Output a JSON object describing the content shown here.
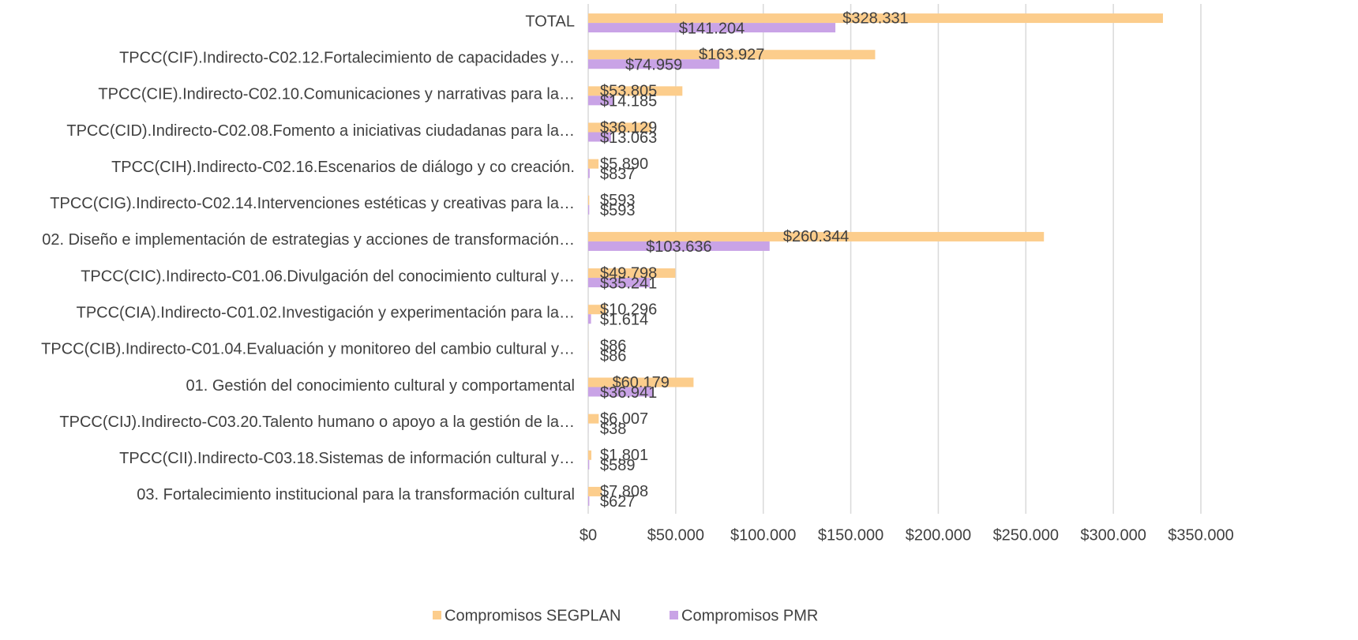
{
  "chart_data": {
    "type": "bar",
    "orientation": "horizontal",
    "categories": [
      "TOTAL",
      "TPCC(CIF).Indirecto-C02.12.Fortalecimiento de capacidades y…",
      "TPCC(CIE).Indirecto-C02.10.Comunicaciones y narrativas para la…",
      "TPCC(CID).Indirecto-C02.08.Fomento a iniciativas ciudadanas para la…",
      "TPCC(CIH).Indirecto-C02.16.Escenarios de diálogo y co creación.",
      "TPCC(CIG).Indirecto-C02.14.Intervenciones estéticas y creativas para la…",
      "02. Diseño e implementación de estrategias y acciones de transformación…",
      "TPCC(CIC).Indirecto-C01.06.Divulgación del conocimiento cultural y…",
      "TPCC(CIA).Indirecto-C01.02.Investigación y experimentación para la…",
      "TPCC(CIB).Indirecto-C01.04.Evaluación y monitoreo del cambio cultural y…",
      "01. Gestión del conocimiento cultural y comportamental",
      "TPCC(CIJ).Indirecto-C03.20.Talento humano o apoyo a la gestión de la…",
      "TPCC(CII).Indirecto-C03.18.Sistemas de información cultural y…",
      "03. Fortalecimiento institucional para la transformación cultural"
    ],
    "series": [
      {
        "name": "Compromisos SEGPLAN",
        "color": "#fccd8c",
        "values": [
          328331,
          163927,
          53805,
          36129,
          5890,
          593,
          260344,
          49798,
          10296,
          86,
          60179,
          6007,
          1801,
          7808
        ],
        "value_labels": [
          "$328.331",
          "$163.927",
          "$53.805",
          "$36.129",
          "$5.890",
          "$593",
          "$260.344",
          "$49.798",
          "$10.296",
          "$86",
          "$60.179",
          "$6.007",
          "$1.801",
          "$7.808"
        ]
      },
      {
        "name": "Compromisos PMR",
        "color": "#c9a3e6",
        "values": [
          141204,
          74959,
          14185,
          13063,
          837,
          593,
          103636,
          35241,
          1614,
          86,
          36941,
          38,
          589,
          627
        ],
        "value_labels": [
          "$141.204",
          "$74.959",
          "$14.185",
          "$13.063",
          "$837",
          "$593",
          "$103.636",
          "$35.241",
          "$1.614",
          "$86",
          "$36.941",
          "$38",
          "$589",
          "$627"
        ]
      }
    ],
    "xlim": [
      0,
      350000
    ],
    "xticks": [
      {
        "value": 0,
        "label": "$0"
      },
      {
        "value": 50000,
        "label": "$50.000"
      },
      {
        "value": 100000,
        "label": "$100.000"
      },
      {
        "value": 150000,
        "label": "$150.000"
      },
      {
        "value": 200000,
        "label": "$200.000"
      },
      {
        "value": 250000,
        "label": "$250.000"
      },
      {
        "value": 300000,
        "label": "$300.000"
      },
      {
        "value": 350000,
        "label": "$350.000"
      }
    ],
    "grid": true,
    "legend": "bottom"
  }
}
